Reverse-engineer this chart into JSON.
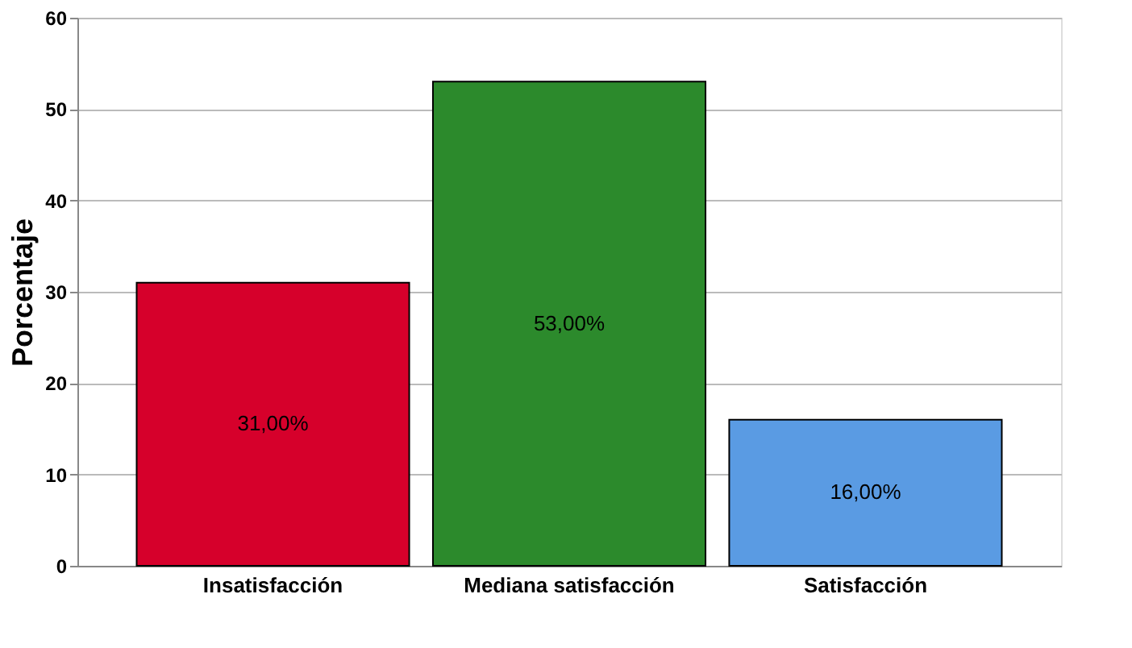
{
  "chart_data": {
    "type": "bar",
    "ylabel": "Porcentaje",
    "categories": [
      "Insatisfacción",
      "Mediana satisfacción",
      "Satisfacción"
    ],
    "values": [
      31,
      53,
      16
    ],
    "colors": [
      "#d6002b",
      "#2c8a2c",
      "#5a9be3"
    ],
    "value_labels": [
      "31,00%",
      "53,00%",
      "16,00%"
    ],
    "ylim": [
      0,
      60
    ],
    "yticks": [
      0,
      10,
      20,
      30,
      40,
      50,
      60
    ],
    "grid": "y"
  }
}
